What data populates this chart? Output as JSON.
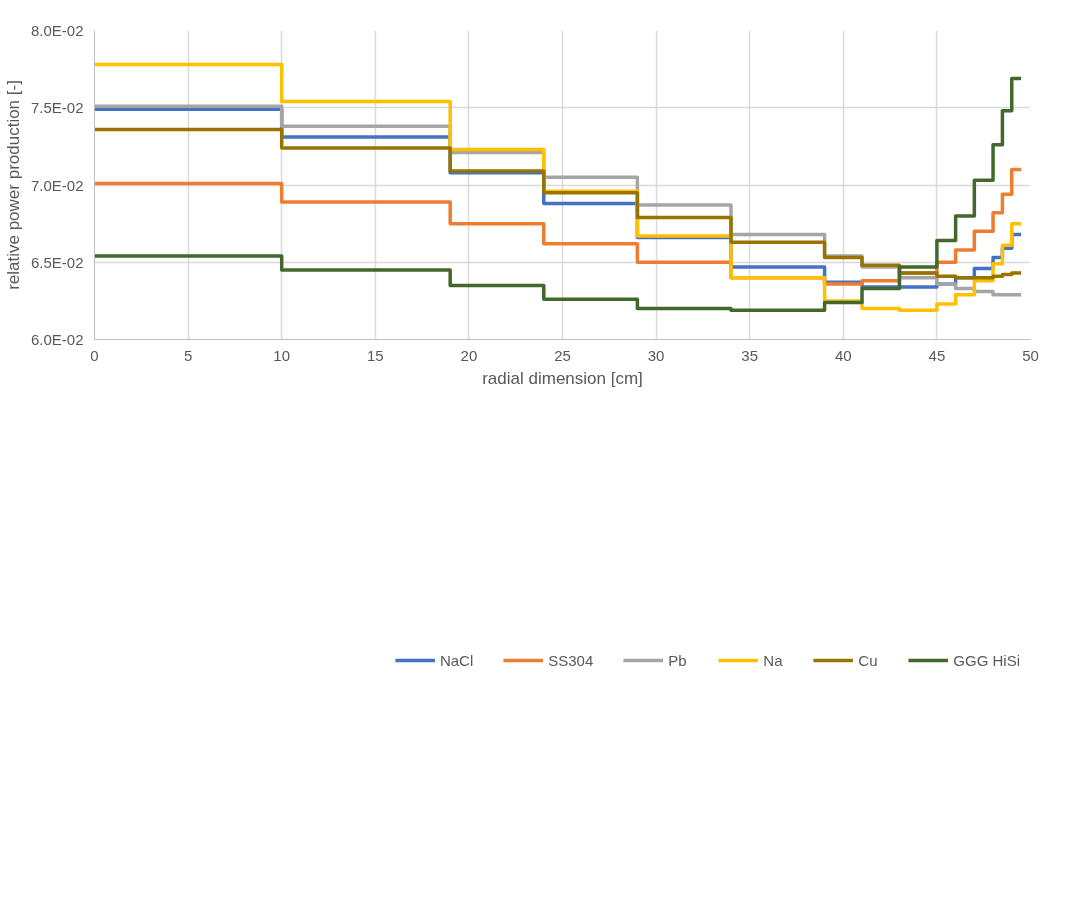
{
  "chart_data": {
    "type": "step",
    "xlabel": "radial dimension [cm]",
    "ylabel": "relative power production [-]",
    "x": [
      0,
      10,
      19,
      24,
      29,
      34,
      39,
      41,
      43,
      45,
      46,
      47,
      48,
      48.5,
      49,
      49.5
    ],
    "series": [
      {
        "name": "NaCl",
        "color": "#4472c4",
        "values": [
          0.0749,
          0.0731,
          0.0708,
          0.0688,
          0.0666,
          0.0647,
          0.0637,
          0.0634,
          0.0634,
          0.0636,
          0.064,
          0.0646,
          0.0653,
          0.0659,
          0.0668,
          0.0668
        ]
      },
      {
        "name": "SS304",
        "color": "#ed7d31",
        "values": [
          0.0701,
          0.0689,
          0.0675,
          0.0662,
          0.065,
          0.064,
          0.0636,
          0.0638,
          0.0643,
          0.065,
          0.0658,
          0.067,
          0.0682,
          0.0694,
          0.071,
          0.071
        ]
      },
      {
        "name": "Pb",
        "color": "#a5a5a5",
        "values": [
          0.0751,
          0.0738,
          0.0721,
          0.0705,
          0.0687,
          0.0668,
          0.0654,
          0.0647,
          0.064,
          0.0636,
          0.0633,
          0.0631,
          0.0629,
          0.0629,
          0.0629,
          0.0629
        ]
      },
      {
        "name": "Na",
        "color": "#ffc000",
        "values": [
          0.0778,
          0.0754,
          0.0723,
          0.0696,
          0.0667,
          0.064,
          0.0625,
          0.062,
          0.0619,
          0.0623,
          0.0629,
          0.0638,
          0.0649,
          0.0661,
          0.0675,
          0.0675
        ]
      },
      {
        "name": "Cu",
        "color": "#997300",
        "values": [
          0.0736,
          0.0724,
          0.0709,
          0.0695,
          0.0679,
          0.0663,
          0.0653,
          0.0648,
          0.0643,
          0.0641,
          0.064,
          0.064,
          0.0641,
          0.0642,
          0.0643,
          0.0643
        ]
      },
      {
        "name": "GGG HiSi",
        "color": "#43682b",
        "values": [
          0.0654,
          0.0645,
          0.0635,
          0.0626,
          0.062,
          0.0619,
          0.0624,
          0.0633,
          0.0647,
          0.0664,
          0.068,
          0.0703,
          0.0726,
          0.0748,
          0.0769,
          0.0769
        ]
      }
    ],
    "xlim": [
      0,
      50
    ],
    "xticks": [
      0,
      5,
      10,
      15,
      20,
      25,
      30,
      35,
      40,
      45,
      50
    ],
    "ylim": [
      0.06,
      0.08
    ],
    "yticks": [
      {
        "value": 0.06,
        "label": "6.0E-02"
      },
      {
        "value": 0.065,
        "label": "6.5E-02"
      },
      {
        "value": 0.07,
        "label": "7.0E-02"
      },
      {
        "value": 0.075,
        "label": "7.5E-02"
      },
      {
        "value": 0.08,
        "label": "8.0E-02"
      }
    ],
    "grid": true,
    "legend": "bottom",
    "line_style": "solid"
  }
}
